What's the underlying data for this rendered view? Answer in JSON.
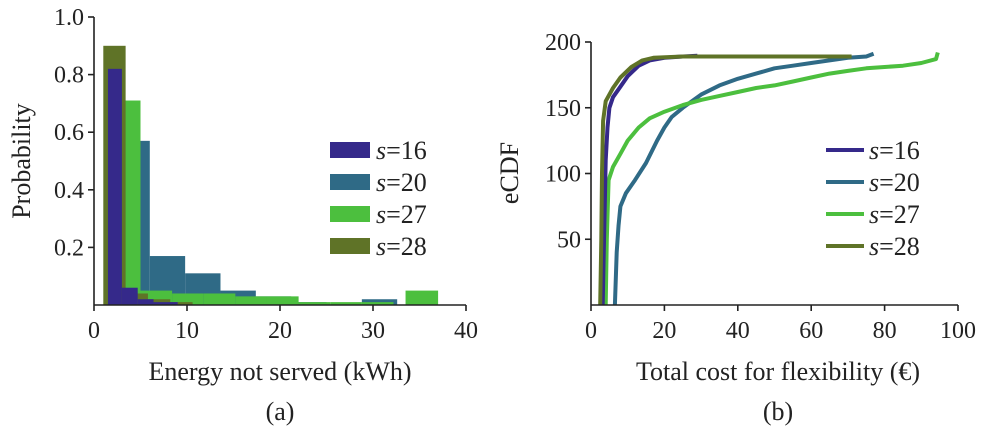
{
  "colors": {
    "s16": "#35298a",
    "s20": "#2f6a86",
    "s27": "#4cbf3e",
    "s28": "#5f7327"
  },
  "chart_data": [
    {
      "type": "bar",
      "histogram": true,
      "panel_label": "(a)",
      "xlabel": "Energy not served (kWh)",
      "ylabel": "Probability",
      "xlim": [
        0,
        40
      ],
      "ylim": [
        0,
        1.0
      ],
      "xticks": [
        "0",
        "10",
        "20",
        "30",
        "40"
      ],
      "yticks": [
        "0.2",
        "0.4",
        "0.6",
        "0.8",
        "1.0"
      ],
      "legend_position": "right",
      "series": [
        {
          "name": "s=16",
          "name_var": "s",
          "name_val": "=16",
          "color_key": "s16",
          "bins": [
            {
              "x0": 1.5,
              "x1": 3.0,
              "p": 0.82
            },
            {
              "x0": 3.0,
              "x1": 4.7,
              "p": 0.06
            },
            {
              "x0": 4.7,
              "x1": 6.4,
              "p": 0.02
            },
            {
              "x0": 6.4,
              "x1": 9.0,
              "p": 0.01
            }
          ]
        },
        {
          "name": "s=20",
          "name_var": "s",
          "name_val": "=20",
          "color_key": "s20",
          "bins": [
            {
              "x0": 2.2,
              "x1": 6.0,
              "p": 0.57
            },
            {
              "x0": 6.0,
              "x1": 9.8,
              "p": 0.17
            },
            {
              "x0": 9.8,
              "x1": 13.6,
              "p": 0.11
            },
            {
              "x0": 13.6,
              "x1": 17.4,
              "p": 0.05
            },
            {
              "x0": 17.4,
              "x1": 21.2,
              "p": 0.03
            },
            {
              "x0": 21.2,
              "x1": 25.0,
              "p": 0.01
            },
            {
              "x0": 25.0,
              "x1": 28.8,
              "p": 0.0
            },
            {
              "x0": 28.8,
              "x1": 32.6,
              "p": 0.02
            }
          ]
        },
        {
          "name": "s=27",
          "name_var": "s",
          "name_val": "=27",
          "color_key": "s27",
          "bins": [
            {
              "x0": 1.7,
              "x1": 5.0,
              "p": 0.71
            },
            {
              "x0": 5.0,
              "x1": 8.4,
              "p": 0.05
            },
            {
              "x0": 8.4,
              "x1": 11.8,
              "p": 0.04
            },
            {
              "x0": 11.8,
              "x1": 15.2,
              "p": 0.04
            },
            {
              "x0": 15.2,
              "x1": 18.6,
              "p": 0.03
            },
            {
              "x0": 18.6,
              "x1": 22.0,
              "p": 0.03
            },
            {
              "x0": 22.0,
              "x1": 25.4,
              "p": 0.01
            },
            {
              "x0": 25.4,
              "x1": 28.8,
              "p": 0.01
            },
            {
              "x0": 28.8,
              "x1": 32.2,
              "p": 0.01
            },
            {
              "x0": 33.5,
              "x1": 37.0,
              "p": 0.05
            }
          ]
        },
        {
          "name": "s=28",
          "name_var": "s",
          "name_val": "=28",
          "color_key": "s28",
          "bins": [
            {
              "x0": 1.0,
              "x1": 3.4,
              "p": 0.9
            },
            {
              "x0": 3.4,
              "x1": 5.8,
              "p": 0.04
            },
            {
              "x0": 5.8,
              "x1": 8.2,
              "p": 0.02
            },
            {
              "x0": 8.2,
              "x1": 10.6,
              "p": 0.01
            }
          ]
        }
      ]
    },
    {
      "type": "line",
      "step": true,
      "panel_label": "(b)",
      "xlabel": "Total cost for flexibility (€)",
      "ylabel": "eCDF",
      "xlim": [
        0,
        100
      ],
      "ylim": [
        0,
        200
      ],
      "xticks": [
        "0",
        "20",
        "40",
        "60",
        "80",
        "100"
      ],
      "yticks": [
        "50",
        "100",
        "150",
        "200"
      ],
      "legend_position": "right",
      "series": [
        {
          "name": "s=16",
          "name_var": "s",
          "name_val": "=16",
          "color_key": "s16",
          "points": [
            [
              3.2,
              0
            ],
            [
              3.4,
              30
            ],
            [
              3.7,
              70
            ],
            [
              4.0,
              110
            ],
            [
              4.5,
              135
            ],
            [
              5,
              150
            ],
            [
              6,
              158
            ],
            [
              8,
              166
            ],
            [
              10,
              174
            ],
            [
              13,
              182
            ],
            [
              16,
              186
            ],
            [
              20,
              188
            ],
            [
              25,
              189
            ],
            [
              29,
              189.5
            ]
          ]
        },
        {
          "name": "s=20",
          "name_var": "s",
          "name_val": "=20",
          "color_key": "s20",
          "points": [
            [
              6.5,
              0
            ],
            [
              7,
              40
            ],
            [
              7.5,
              60
            ],
            [
              8,
              75
            ],
            [
              9.5,
              85
            ],
            [
              12,
              95
            ],
            [
              15,
              108
            ],
            [
              18,
              125
            ],
            [
              20,
              135
            ],
            [
              22,
              143
            ],
            [
              25,
              150
            ],
            [
              30,
              160
            ],
            [
              35,
              167
            ],
            [
              40,
              172
            ],
            [
              45,
              176
            ],
            [
              50,
              180
            ],
            [
              55,
              182
            ],
            [
              60,
              184
            ],
            [
              65,
              186
            ],
            [
              70,
              188
            ],
            [
              75,
              189
            ],
            [
              77,
              191
            ]
          ]
        },
        {
          "name": "s=27",
          "name_var": "s",
          "name_val": "=27",
          "color_key": "s27",
          "points": [
            [
              4,
              0
            ],
            [
              4.3,
              50
            ],
            [
              4.8,
              95
            ],
            [
              6,
              105
            ],
            [
              8,
              115
            ],
            [
              10,
              125
            ],
            [
              13,
              135
            ],
            [
              16,
              142
            ],
            [
              20,
              147
            ],
            [
              25,
              152
            ],
            [
              30,
              156
            ],
            [
              35,
              159
            ],
            [
              40,
              162
            ],
            [
              45,
              165
            ],
            [
              50,
              167
            ],
            [
              55,
              170
            ],
            [
              60,
              173
            ],
            [
              65,
              176
            ],
            [
              70,
              178
            ],
            [
              75,
              180
            ],
            [
              80,
              181
            ],
            [
              85,
              182
            ],
            [
              90,
              184
            ],
            [
              94,
              187
            ],
            [
              94.5,
              192
            ]
          ]
        },
        {
          "name": "s=28",
          "name_var": "s",
          "name_val": "=28",
          "color_key": "s28",
          "points": [
            [
              2.5,
              0
            ],
            [
              2.8,
              50
            ],
            [
              3,
              100
            ],
            [
              3.3,
              140
            ],
            [
              4,
              155
            ],
            [
              6,
              165
            ],
            [
              8,
              173
            ],
            [
              11,
              181
            ],
            [
              14,
              186
            ],
            [
              17,
              188
            ],
            [
              25,
              189
            ],
            [
              40,
              189
            ],
            [
              60,
              189
            ],
            [
              71,
              189
            ]
          ]
        }
      ]
    }
  ]
}
